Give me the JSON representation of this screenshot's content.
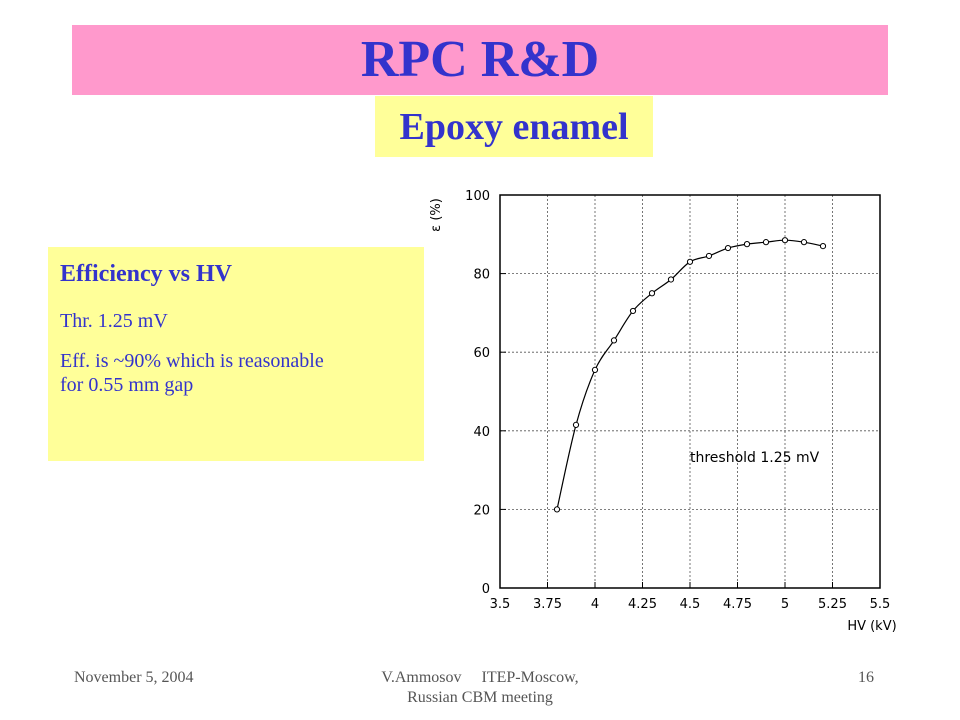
{
  "slide": {
    "title": "RPC R&D",
    "subtitle": "Epoxy enamel",
    "info": {
      "heading": "Efficiency vs HV",
      "threshold": "Thr. 1.25 mV",
      "note_line1": "Eff. is  ~90% which is reasonable",
      "note_line2": "for 0.55 mm gap"
    },
    "footer": {
      "date": "November 5, 2004",
      "center_line1": "V.Ammosov     ITEP-Moscow,",
      "center_line2": "Russian CBM meeting",
      "page": "16"
    }
  },
  "colors": {
    "title_bar": "#ff99cc",
    "highlight_box": "#ffff99",
    "text_accent": "#3333cc",
    "footer_text": "#555555"
  },
  "chart_data": {
    "type": "line",
    "title": "",
    "xlabel": "HV (kV)",
    "ylabel": "ε (%)",
    "xlim": [
      3.5,
      5.5
    ],
    "ylim": [
      0,
      100
    ],
    "xticks": [
      3.5,
      3.75,
      4,
      4.25,
      4.5,
      4.75,
      5,
      5.25,
      5.5
    ],
    "xtick_labels": [
      "3.5",
      "3.75",
      "4",
      "4.25",
      "4.5",
      "4.75",
      "5",
      "5.25",
      "5.5"
    ],
    "yticks": [
      0,
      20,
      40,
      60,
      80,
      100
    ],
    "ytick_labels": [
      "0",
      "20",
      "40",
      "60",
      "80",
      "100"
    ],
    "grid": true,
    "annotation": "threshold 1.25 mV",
    "series": [
      {
        "x": [
          3.8,
          3.9,
          4.0,
          4.1,
          4.2,
          4.3,
          4.4,
          4.5,
          4.6,
          4.7,
          4.8,
          4.9,
          5.0,
          5.1,
          5.2
        ],
        "y": [
          20,
          41.5,
          55.5,
          63,
          70.5,
          75,
          78.5,
          83,
          84.5,
          86.5,
          87.5,
          88,
          88.5,
          88,
          87
        ]
      }
    ]
  }
}
